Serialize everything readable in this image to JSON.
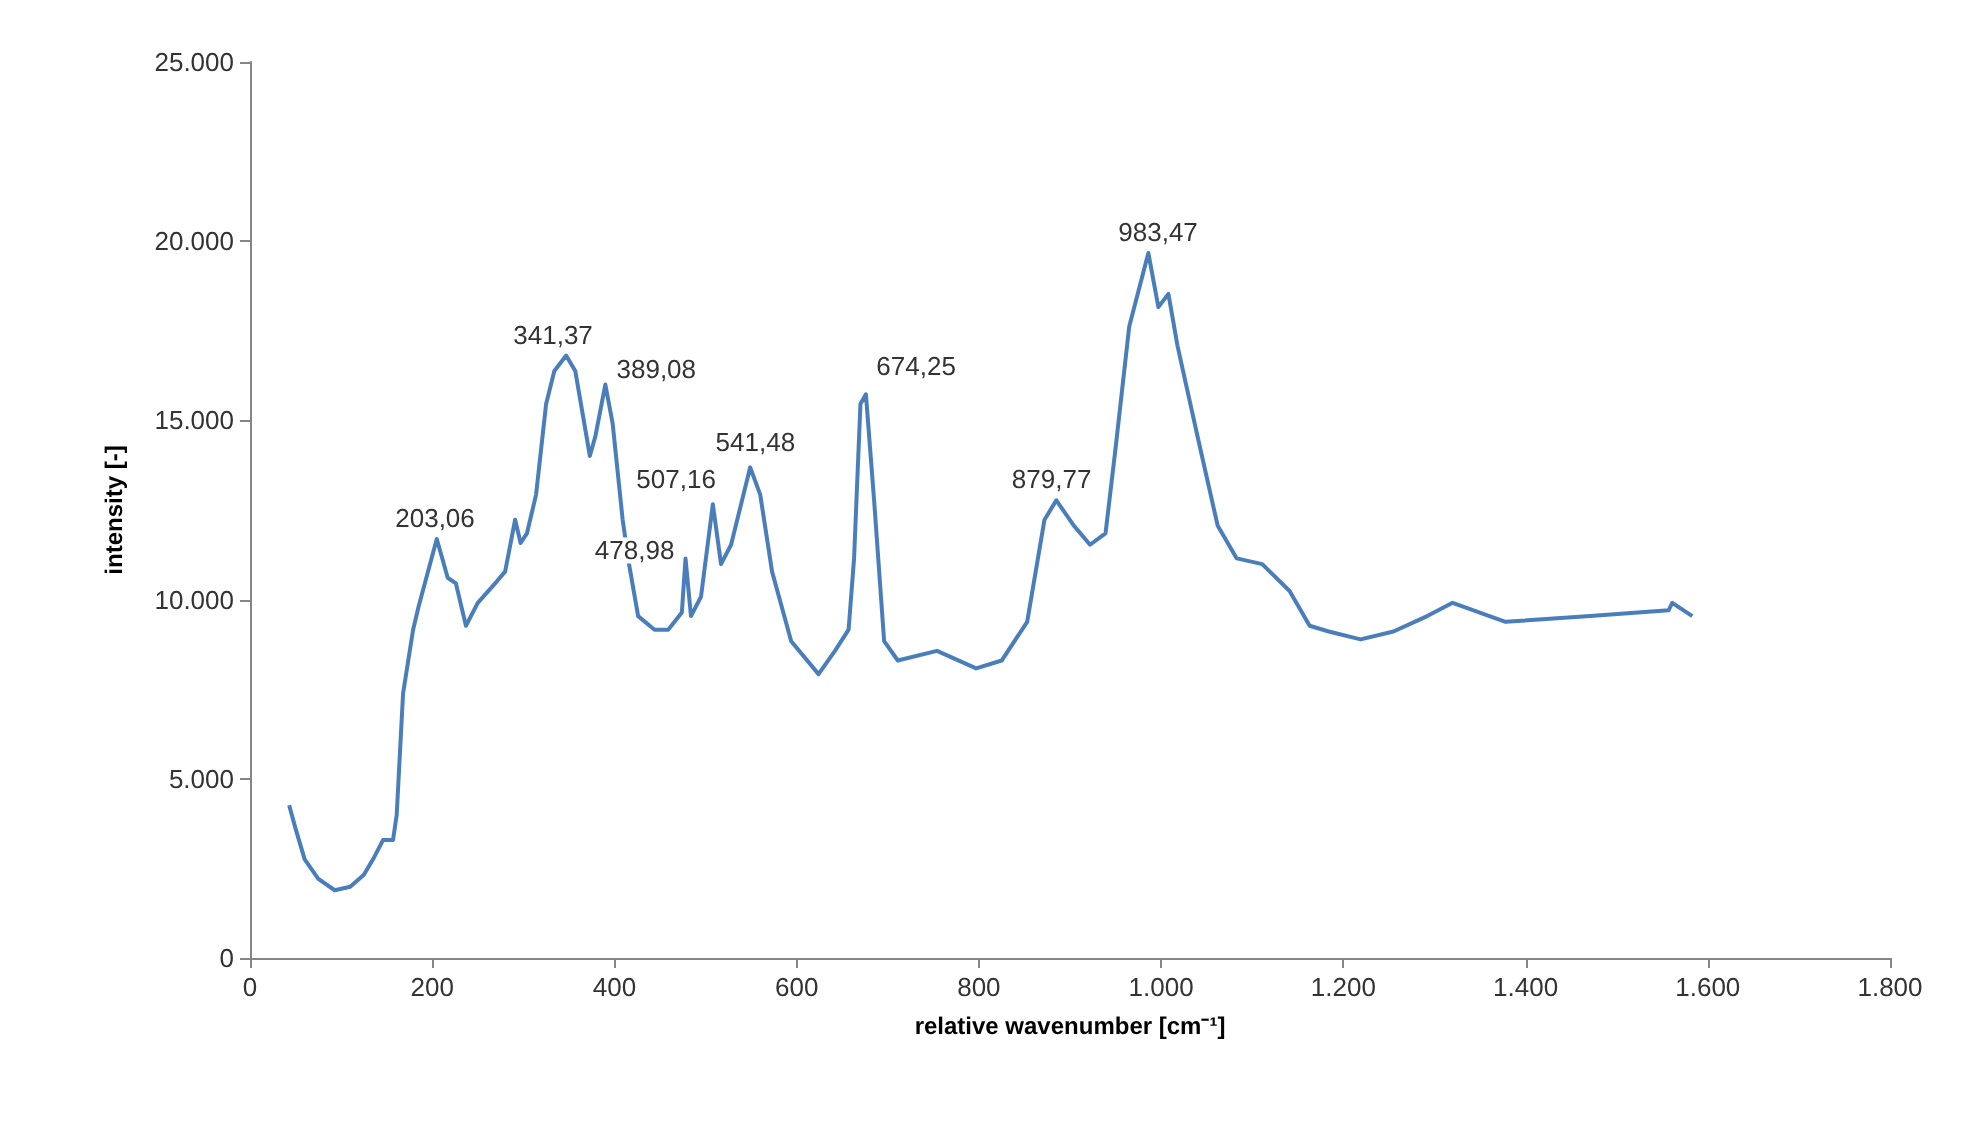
{
  "chart_data": {
    "type": "line",
    "xlabel": "relative wavenumber [cm⁻¹]",
    "ylabel": "intensity [-]",
    "xlim": [
      0,
      1800
    ],
    "xticks": [
      0,
      200,
      400,
      600,
      800,
      {
        "value": 1000,
        "label": "1.000"
      },
      {
        "value": 1200,
        "label": "1.200"
      },
      {
        "value": 1400,
        "label": "1.400"
      },
      {
        "value": 1600,
        "label": "1.600"
      },
      {
        "value": 1800,
        "label": "1.800"
      }
    ],
    "ylim": [
      0,
      25000
    ],
    "yticks": [
      0,
      {
        "value": 5000,
        "label": "5.000"
      },
      {
        "value": 10000,
        "label": "10.000"
      },
      {
        "value": 15000,
        "label": "15.000"
      },
      {
        "value": 20000,
        "label": "20.000"
      },
      {
        "value": 25000,
        "label": "25.000"
      }
    ],
    "grid": false,
    "marker": "none",
    "line_style": "solid",
    "series": [
      {
        "color": "#4a7ebb",
        "x": [
          43,
          50,
          60,
          75,
          93,
          110,
          125,
          136,
          146,
          157,
          161,
          168,
          179,
          185,
          205,
          217,
          226,
          237,
          250,
          271,
          280,
          291,
          297,
          304,
          314,
          325,
          334,
          347,
          357,
          373,
          379,
          390,
          398,
          409,
          416,
          426,
          444,
          459,
          474,
          478,
          484,
          495,
          508,
          517,
          528,
          549,
          560,
          573,
          594,
          624,
          642,
          657,
          663,
          670,
          676,
          685,
          696,
          711,
          754,
          797,
          825,
          853,
          872,
          885,
          904,
          922,
          939,
          950,
          965,
          986,
          997,
          1008,
          1018,
          1040,
          1062,
          1083,
          1111,
          1141,
          1163,
          1184,
          1219,
          1255,
          1292,
          1320,
          1378,
          1471,
          1557,
          1561,
          1583
        ],
        "values": [
          4260,
          3610,
          2750,
          2210,
          1890,
          1990,
          2320,
          2800,
          3290,
          3290,
          3990,
          7380,
          9160,
          9800,
          11690,
          10610,
          10450,
          9270,
          9910,
          10510,
          10780,
          12230,
          11580,
          11850,
          12930,
          15460,
          16380,
          16810,
          16380,
          14010,
          14550,
          16000,
          14920,
          12230,
          10990,
          9540,
          9160,
          9160,
          9640,
          11150,
          9540,
          10080,
          12660,
          10990,
          11530,
          13690,
          12930,
          10780,
          8840,
          7920,
          8570,
          9160,
          11150,
          15460,
          15730,
          12770,
          8840,
          8300,
          8570,
          8080,
          8300,
          9380,
          12230,
          12770,
          12070,
          11530,
          11850,
          14220,
          17620,
          19670,
          18160,
          18530,
          17080,
          14550,
          12070,
          11150,
          10990,
          10240,
          9270,
          9110,
          8890,
          9110,
          9540,
          9910,
          9380,
          9540,
          9700,
          9910,
          9540
        ]
      }
    ],
    "annotations": [
      {
        "text": "203,06",
        "x": 203.06,
        "y": 11690
      },
      {
        "text": "341,37",
        "x": 341.37,
        "y": 16810
      },
      {
        "text": "389,08",
        "x": 389.08,
        "y": 16000
      },
      {
        "text": "478,98",
        "x": 478.98,
        "y": 11150
      },
      {
        "text": "507,16",
        "x": 507.16,
        "y": 12660
      },
      {
        "text": "541,48",
        "x": 541.48,
        "y": 13690
      },
      {
        "text": "674,25",
        "x": 674.25,
        "y": 15730
      },
      {
        "text": "879,77",
        "x": 879.77,
        "y": 12770
      },
      {
        "text": "983,47",
        "x": 983.47,
        "y": 19670
      }
    ]
  }
}
